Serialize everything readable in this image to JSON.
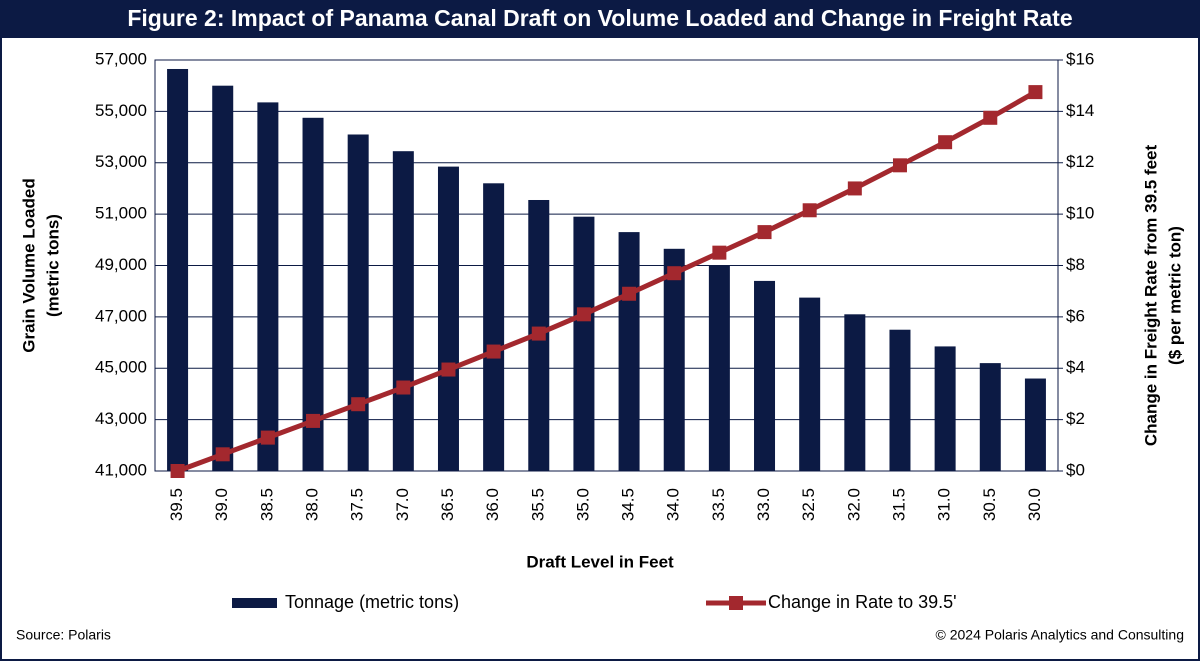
{
  "chart_data": {
    "type": "bar",
    "title": "Figure 2: Impact of Panama Canal Draft on Volume Loaded and Change in Freight Rate",
    "categories": [
      "39.5",
      "39.0",
      "38.5",
      "38.0",
      "37.5",
      "37.0",
      "36.5",
      "36.0",
      "35.5",
      "35.0",
      "34.5",
      "34.0",
      "33.5",
      "33.0",
      "32.5",
      "32.0",
      "31.5",
      "31.0",
      "30.5",
      "30.0"
    ],
    "series": [
      {
        "name": "Tonnage (metric tons)",
        "type": "bar",
        "color": "#0c1a44",
        "values": [
          56650,
          56000,
          55350,
          54750,
          54100,
          53450,
          52850,
          52200,
          51550,
          50900,
          50300,
          49650,
          49000,
          48400,
          47750,
          47100,
          46500,
          45850,
          45200,
          44600
        ]
      },
      {
        "name": "Change in Rate to 39.5'",
        "type": "line",
        "axis": "y2",
        "color": "#a3282e",
        "values": [
          0,
          0.65,
          1.3,
          1.95,
          2.6,
          3.25,
          3.95,
          4.65,
          5.35,
          6.1,
          6.9,
          7.7,
          8.5,
          9.3,
          10.15,
          11.0,
          11.9,
          12.8,
          13.75,
          14.75
        ]
      }
    ],
    "ylim": [
      41000,
      57000
    ],
    "yticks": [
      {
        "value": 41000,
        "label": "41,000"
      },
      {
        "value": 43000,
        "label": "43,000"
      },
      {
        "value": 45000,
        "label": "45,000"
      },
      {
        "value": 47000,
        "label": "47,000"
      },
      {
        "value": 49000,
        "label": "49,000"
      },
      {
        "value": 51000,
        "label": "51,000"
      },
      {
        "value": 53000,
        "label": "53,000"
      },
      {
        "value": 55000,
        "label": "55,000"
      },
      {
        "value": 57000,
        "label": "57,000"
      }
    ],
    "y2lim": [
      0,
      16
    ],
    "y2ticks": [
      {
        "value": 0,
        "label": "$0"
      },
      {
        "value": 2,
        "label": "$2"
      },
      {
        "value": 4,
        "label": "$4"
      },
      {
        "value": 6,
        "label": "$6"
      },
      {
        "value": 8,
        "label": "$8"
      },
      {
        "value": 10,
        "label": "$10"
      },
      {
        "value": 12,
        "label": "$12"
      },
      {
        "value": 14,
        "label": "$14"
      },
      {
        "value": 16,
        "label": "$16"
      }
    ],
    "ylabel": [
      "Grain Volume Loaded",
      "(metric tons)"
    ],
    "y2label": [
      "Change in Freight Rate from 39.5 feet",
      "($ per metric ton)"
    ],
    "xlabel": "Draft Level in Feet",
    "grid": true,
    "source": "Source: Polaris",
    "copyright": "© 2024 Polaris Analytics and Consulting"
  }
}
